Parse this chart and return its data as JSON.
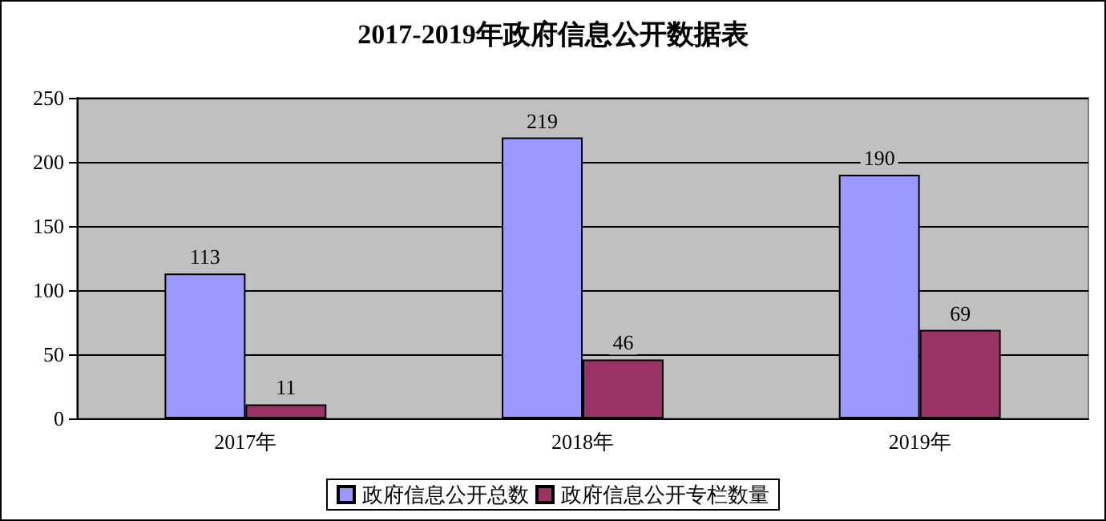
{
  "chart_data": {
    "type": "bar",
    "title": "2017-2019年政府信息公开数据表",
    "categories": [
      "2017年",
      "2018年",
      "2019年"
    ],
    "series": [
      {
        "name": "政府信息公开总数",
        "color": "#9999ff",
        "values": [
          113,
          219,
          190
        ]
      },
      {
        "name": "政府信息公开专栏数量",
        "color": "#993366",
        "values": [
          11,
          46,
          69
        ]
      }
    ],
    "ylim": [
      0,
      250
    ],
    "yticks": [
      0,
      50,
      100,
      150,
      200,
      250
    ],
    "grid": "y",
    "legend": "bottom",
    "data_labels": true
  }
}
